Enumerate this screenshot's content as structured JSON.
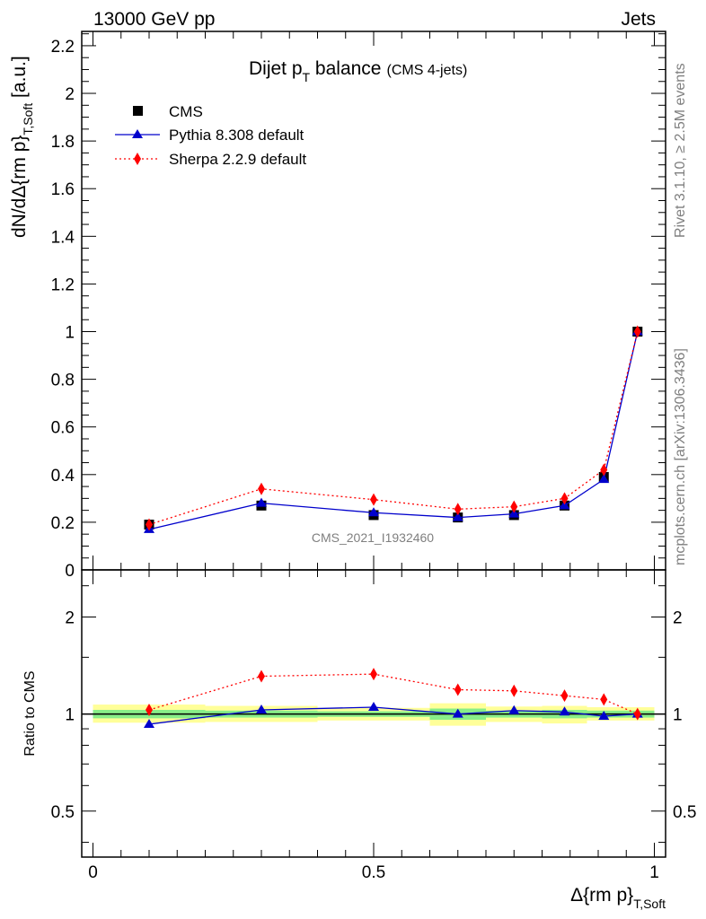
{
  "header": {
    "left": "13000 GeV pp",
    "right": "Jets"
  },
  "side_labels": {
    "rivet": "Rivet 3.1.10, ≥ 2.5M events",
    "mcplots": "mcplots.cern.ch [arXiv:1306.3436]"
  },
  "chart_data": [
    {
      "type": "line",
      "title_main": "Dijet p",
      "title_sub": "T",
      "title_main2": " balance",
      "title_small": "(CMS 4-jets)",
      "watermark": "CMS_2021_I1932460",
      "ylabel_main": "dN/dΔ{rm p}",
      "ylabel_sub": "T,Soft",
      "ylabel_unit": " [a.u.]",
      "xlim": [
        -0.02,
        1.02
      ],
      "ylim": [
        0,
        2.26
      ],
      "yticks": [
        0.2,
        0.4,
        0.6,
        0.8,
        1,
        1.2,
        1.4,
        1.6,
        1.8,
        2,
        2.2
      ],
      "ytick_labels": [
        "0.2",
        "0.4",
        "0.6",
        "0.8",
        "1",
        "1.2",
        "1.4",
        "1.6",
        "1.8",
        "2",
        "2.2"
      ],
      "ytick_zero_label": "0",
      "legend": [
        "CMS",
        "Pythia 8.308 default",
        "Sherpa 2.2.9 default"
      ],
      "series": [
        {
          "name": "CMS",
          "color": "#000000",
          "marker": "square",
          "x": [
            0.1,
            0.3,
            0.5,
            0.65,
            0.75,
            0.84,
            0.91,
            0.97
          ],
          "values": [
            0.19,
            0.27,
            0.23,
            0.22,
            0.23,
            0.27,
            0.39,
            1.0
          ]
        },
        {
          "name": "Pythia 8.308 default",
          "color": "#0000cc",
          "marker": "triangle",
          "line": "solid",
          "x": [
            0.1,
            0.3,
            0.5,
            0.65,
            0.75,
            0.84,
            0.91,
            0.97
          ],
          "values": [
            0.17,
            0.28,
            0.24,
            0.22,
            0.235,
            0.27,
            0.38,
            1.0
          ]
        },
        {
          "name": "Sherpa 2.2.9 default",
          "color": "#ff0000",
          "marker": "diamond",
          "line": "dotted",
          "x": [
            0.1,
            0.3,
            0.5,
            0.65,
            0.75,
            0.84,
            0.91,
            0.97
          ],
          "values": [
            0.19,
            0.34,
            0.295,
            0.255,
            0.265,
            0.3,
            0.42,
            1.0
          ]
        }
      ]
    },
    {
      "type": "line",
      "ylabel": "Ratio to CMS",
      "xlabel_main": "Δ{rm p}",
      "xlabel_sub": "T,Soft",
      "xlim": [
        -0.02,
        1.02
      ],
      "yscale": "log",
      "ylim": [
        0.36,
        2.8
      ],
      "yticks": [
        0.5,
        1,
        2
      ],
      "ytick_labels": [
        "0.5",
        "1",
        "2"
      ],
      "xticks": [
        0,
        0.5,
        1
      ],
      "xtick_labels": [
        "0",
        "0.5",
        "1"
      ],
      "uncertainty_bands": [
        {
          "x0": 0.0,
          "x1": 0.2,
          "inner": [
            0.97,
            1.03
          ],
          "outer": [
            0.94,
            1.07
          ]
        },
        {
          "x0": 0.2,
          "x1": 0.4,
          "inner": [
            0.975,
            1.025
          ],
          "outer": [
            0.945,
            1.06
          ]
        },
        {
          "x0": 0.4,
          "x1": 0.6,
          "inner": [
            0.98,
            1.02
          ],
          "outer": [
            0.955,
            1.045
          ]
        },
        {
          "x0": 0.6,
          "x1": 0.7,
          "inner": [
            0.96,
            1.04
          ],
          "outer": [
            0.92,
            1.08
          ]
        },
        {
          "x0": 0.7,
          "x1": 0.8,
          "inner": [
            0.975,
            1.025
          ],
          "outer": [
            0.945,
            1.055
          ]
        },
        {
          "x0": 0.8,
          "x1": 0.88,
          "inner": [
            0.97,
            1.03
          ],
          "outer": [
            0.935,
            1.06
          ]
        },
        {
          "x0": 0.88,
          "x1": 1.0,
          "inner": [
            0.975,
            1.025
          ],
          "outer": [
            0.955,
            1.05
          ]
        }
      ],
      "series": [
        {
          "name": "Pythia 8.308 default",
          "color": "#0000cc",
          "marker": "triangle",
          "line": "solid",
          "x": [
            0.1,
            0.3,
            0.5,
            0.65,
            0.75,
            0.84,
            0.91,
            0.97
          ],
          "values": [
            0.93,
            1.03,
            1.05,
            1.0,
            1.025,
            1.015,
            0.985,
            1.0
          ]
        },
        {
          "name": "Sherpa 2.2.9 default",
          "color": "#ff0000",
          "marker": "diamond",
          "line": "dotted",
          "x": [
            0.1,
            0.3,
            0.5,
            0.65,
            0.75,
            0.84,
            0.91,
            0.97
          ],
          "values": [
            1.03,
            1.31,
            1.33,
            1.19,
            1.18,
            1.14,
            1.11,
            1.0
          ]
        }
      ]
    }
  ]
}
